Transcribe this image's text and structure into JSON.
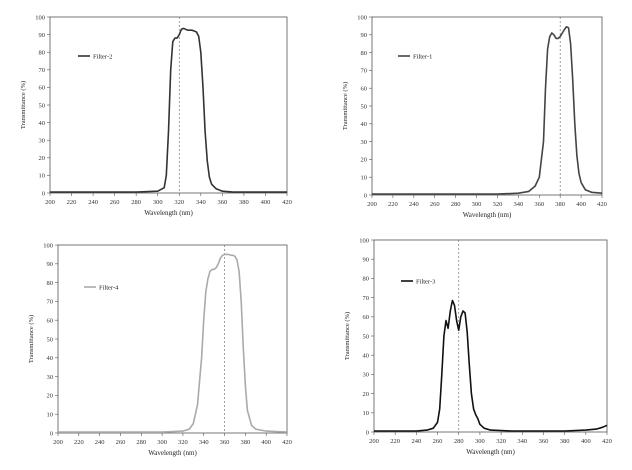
{
  "chart_data": [
    {
      "type": "line",
      "series": [
        {
          "name": "Filter-2",
          "color": "#333333",
          "x": [
            200,
            240,
            280,
            300,
            306,
            308,
            310,
            312,
            314,
            316,
            318,
            320,
            322,
            324,
            326,
            328,
            330,
            332,
            334,
            336,
            338,
            340,
            342,
            344,
            346,
            348,
            350,
            354,
            360,
            370,
            380,
            420
          ],
          "y": [
            0.5,
            0.5,
            0.5,
            1,
            3,
            10,
            35,
            70,
            86,
            88,
            88,
            90,
            93,
            93.5,
            93,
            92.5,
            92.5,
            92.5,
            92,
            91.5,
            89,
            80,
            60,
            35,
            18,
            9,
            5,
            2.5,
            1,
            0.5,
            0.5,
            0.5
          ]
        }
      ],
      "marker_x": 320,
      "xlim": [
        200,
        420
      ],
      "ylim": [
        0,
        100
      ],
      "xticks": [
        200,
        220,
        240,
        260,
        280,
        300,
        320,
        340,
        360,
        380,
        400,
        420
      ],
      "yticks": [
        0,
        10,
        20,
        30,
        40,
        50,
        60,
        70,
        80,
        90,
        100
      ],
      "xlabel": "Wavelength (nm)",
      "ylabel": "Transmittance (%)",
      "legend_position": "top-left",
      "grid": false
    },
    {
      "type": "line",
      "series": [
        {
          "name": "Filter-1",
          "color": "#444444",
          "x": [
            200,
            260,
            320,
            340,
            350,
            356,
            360,
            364,
            366,
            368,
            370,
            372,
            374,
            376,
            378,
            380,
            382,
            384,
            386,
            388,
            390,
            392,
            394,
            396,
            398,
            400,
            404,
            410,
            420
          ],
          "y": [
            0.5,
            0.5,
            0.5,
            1,
            2,
            5,
            10,
            30,
            60,
            82,
            89,
            91,
            90,
            88,
            88,
            89,
            91,
            93,
            94.5,
            94,
            85,
            65,
            40,
            22,
            12,
            7,
            3,
            1.5,
            1
          ]
        }
      ],
      "marker_x": 380,
      "xlim": [
        200,
        420
      ],
      "ylim": [
        0,
        100
      ],
      "xticks": [
        200,
        220,
        240,
        260,
        280,
        300,
        320,
        340,
        360,
        380,
        400,
        420
      ],
      "yticks": [
        0,
        10,
        20,
        30,
        40,
        50,
        60,
        70,
        80,
        90,
        100
      ],
      "xlabel": "Wavelength (nm)",
      "ylabel": "Transmittance (%)",
      "legend_position": "top-left",
      "grid": false
    },
    {
      "type": "line",
      "series": [
        {
          "name": "Filter-4",
          "color": "#aaaaaa",
          "x": [
            200,
            260,
            300,
            320,
            326,
            330,
            334,
            338,
            340,
            342,
            344,
            346,
            348,
            350,
            352,
            354,
            356,
            358,
            360,
            362,
            364,
            366,
            368,
            370,
            372,
            374,
            376,
            378,
            380,
            382,
            386,
            390,
            400,
            420
          ],
          "y": [
            0.5,
            0.5,
            0.5,
            1,
            2,
            5,
            15,
            40,
            60,
            75,
            82,
            86,
            87,
            87,
            88,
            90,
            93,
            94.5,
            95,
            95,
            95,
            94.5,
            94.5,
            94,
            92,
            86,
            70,
            45,
            25,
            12,
            4,
            2,
            1,
            0.5
          ]
        }
      ],
      "marker_x": 360,
      "xlim": [
        200,
        420
      ],
      "ylim": [
        0,
        100
      ],
      "xticks": [
        200,
        220,
        240,
        260,
        280,
        300,
        320,
        340,
        360,
        380,
        400,
        420
      ],
      "yticks": [
        0,
        10,
        20,
        30,
        40,
        50,
        60,
        70,
        80,
        90,
        100
      ],
      "xlabel": "Wavelength (nm)",
      "ylabel": "Transmittance (%)",
      "legend_position": "top-left",
      "grid": false
    },
    {
      "type": "line",
      "series": [
        {
          "name": "Filter-3",
          "color": "#111111",
          "x": [
            200,
            240,
            250,
            256,
            260,
            262,
            264,
            266,
            268,
            270,
            272,
            274,
            276,
            278,
            280,
            282,
            284,
            286,
            288,
            290,
            292,
            294,
            296,
            298,
            300,
            304,
            310,
            330,
            380,
            400,
            410,
            416,
            420
          ],
          "y": [
            0.5,
            0.5,
            1,
            2,
            5,
            12,
            30,
            50,
            58,
            54,
            63,
            68.5,
            66,
            58,
            53,
            60,
            63,
            62,
            52,
            35,
            20,
            12,
            9,
            7,
            4,
            2,
            1,
            0.5,
            0.5,
            1,
            1.5,
            2.5,
            3.5
          ]
        }
      ],
      "marker_x": 280,
      "xlim": [
        200,
        420
      ],
      "ylim": [
        0,
        100
      ],
      "xticks": [
        200,
        220,
        240,
        260,
        280,
        300,
        320,
        340,
        360,
        380,
        400,
        420
      ],
      "yticks": [
        0,
        10,
        20,
        30,
        40,
        50,
        60,
        70,
        80,
        90,
        100
      ],
      "xlabel": "Wavelength (nm)",
      "ylabel": "Transmittance (%)",
      "legend_position": "top-left",
      "grid": false
    }
  ]
}
